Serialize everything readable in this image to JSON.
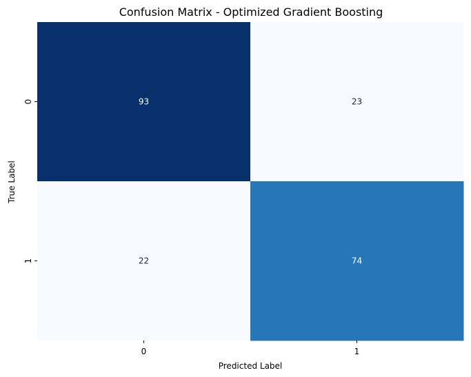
{
  "chart_data": {
    "type": "heatmap",
    "title": "Confusion Matrix - Optimized Gradient Boosting",
    "xlabel": "Predicted Label",
    "ylabel": "True Label",
    "x_categories": [
      "0",
      "1"
    ],
    "y_categories": [
      "0",
      "1"
    ],
    "values": [
      [
        93,
        23
      ],
      [
        22,
        74
      ]
    ],
    "colormap": "Blues",
    "colorbar": false,
    "grid": false,
    "colors": {
      "cell_0_0": "#08306b",
      "cell_0_1": "#f7fbff",
      "cell_1_0": "#f7fbff",
      "cell_1_1": "#2676b8",
      "text_dark_bg": "#ffffff",
      "text_light_bg": "#262626"
    }
  }
}
